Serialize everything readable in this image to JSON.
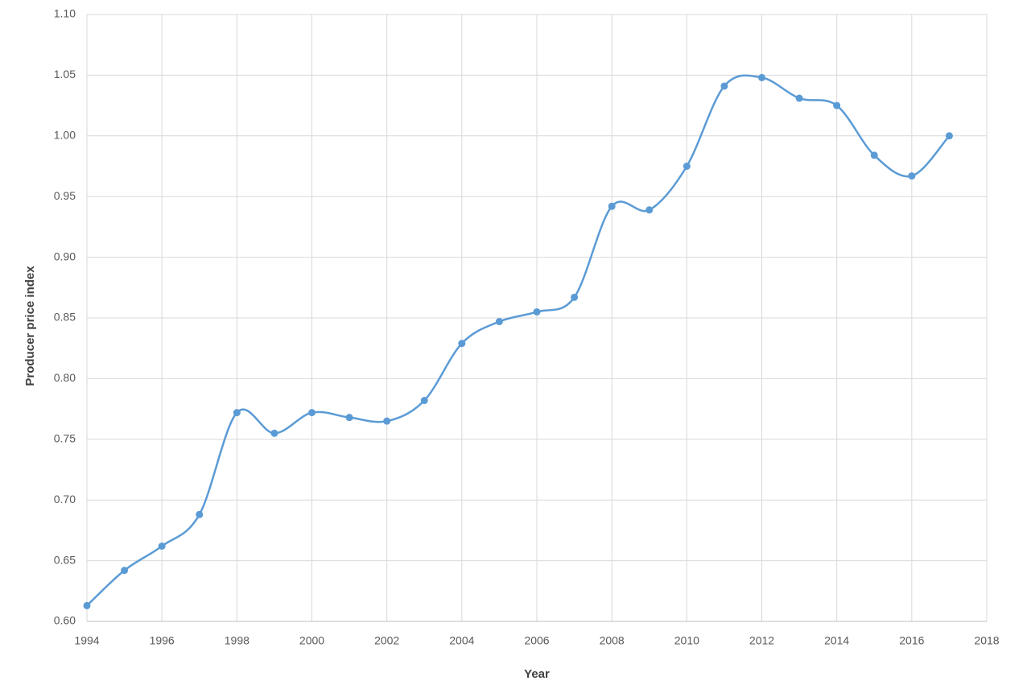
{
  "chart_data": {
    "type": "line",
    "x_label": "Year",
    "y_label": "Producer price index",
    "x": [
      1994,
      1995,
      1996,
      1997,
      1998,
      1999,
      2000,
      2001,
      2002,
      2003,
      2004,
      2005,
      2006,
      2007,
      2008,
      2009,
      2010,
      2011,
      2012,
      2013,
      2014,
      2015,
      2016,
      2017
    ],
    "values": [
      0.613,
      0.642,
      0.662,
      0.688,
      0.772,
      0.755,
      0.772,
      0.768,
      0.765,
      0.782,
      0.829,
      0.847,
      0.855,
      0.867,
      0.942,
      0.939,
      0.975,
      1.041,
      1.048,
      1.031,
      1.025,
      0.984,
      0.967,
      1.0
    ],
    "color": "#5b9bd5",
    "smooth": true,
    "grid": true,
    "xlim": [
      1994,
      2018
    ],
    "xticks": [
      1994,
      1996,
      1998,
      2000,
      2002,
      2004,
      2006,
      2008,
      2010,
      2012,
      2014,
      2016,
      2018
    ],
    "ylim": [
      0.6,
      1.1
    ],
    "yticks": [
      {
        "value": 0.6,
        "label": "0.60"
      },
      {
        "value": 0.65,
        "label": "0.65"
      },
      {
        "value": 0.7,
        "label": "0.70"
      },
      {
        "value": 0.75,
        "label": "0.75"
      },
      {
        "value": 0.8,
        "label": "0.80"
      },
      {
        "value": 0.85,
        "label": "0.85"
      },
      {
        "value": 0.9,
        "label": "0.90"
      },
      {
        "value": 0.95,
        "label": "0.95"
      },
      {
        "value": 1.0,
        "label": "1.00"
      },
      {
        "value": 1.05,
        "label": "1.05"
      },
      {
        "value": 1.1,
        "label": "1.10"
      }
    ]
  }
}
